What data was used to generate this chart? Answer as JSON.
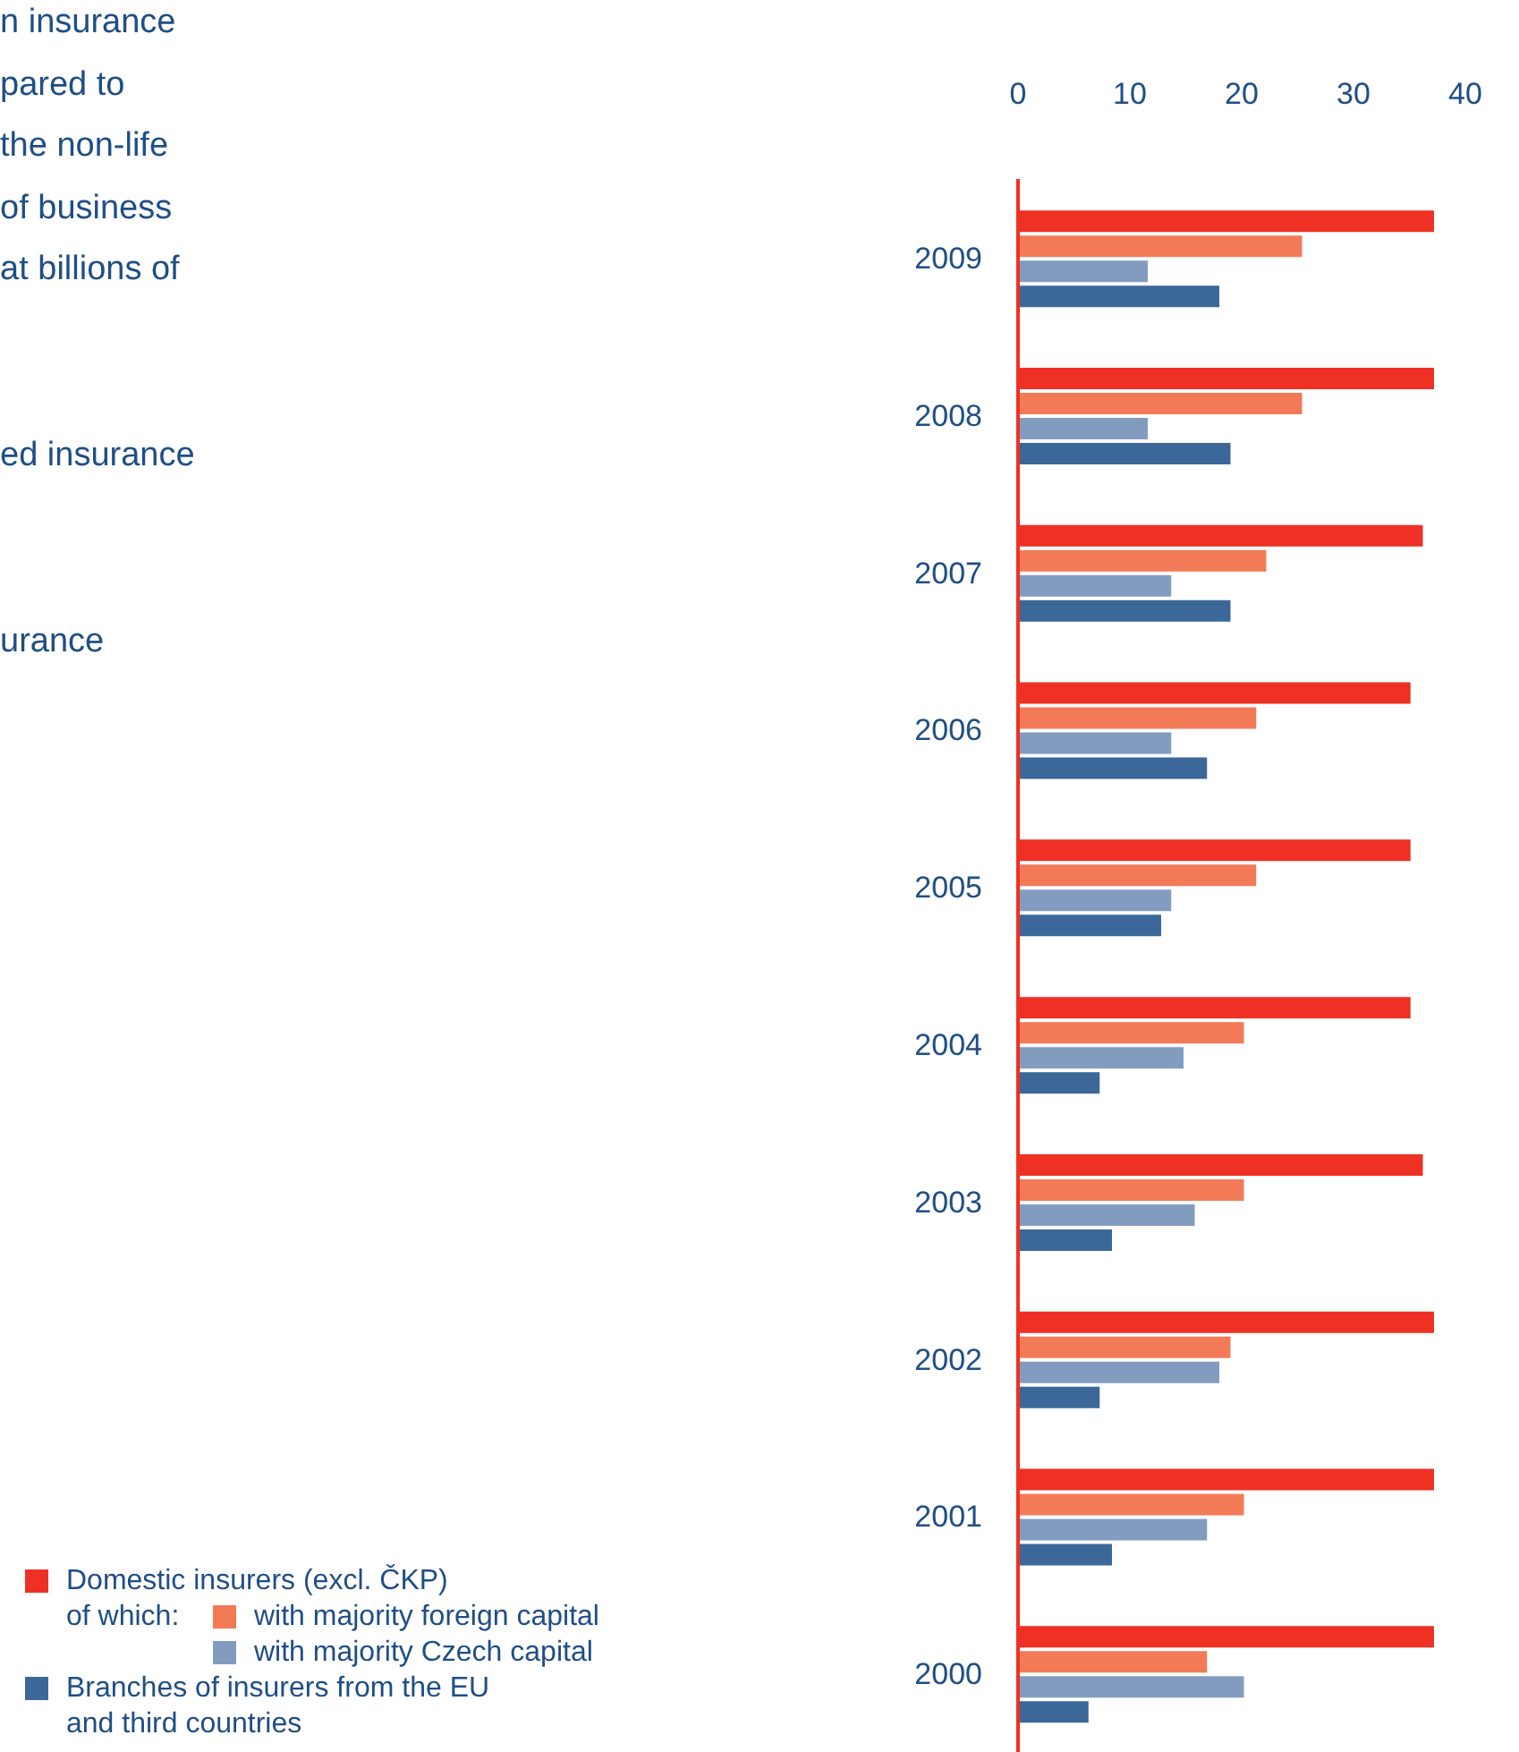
{
  "chart_data": {
    "type": "bar",
    "orientation": "horizontal",
    "categories": [
      "2009",
      "2008",
      "2007",
      "2006",
      "2005",
      "2004",
      "2003",
      "2002",
      "2001",
      "2000"
    ],
    "series": [
      {
        "name": "Domestic insurers (excl. ČKP)",
        "color": "#ee3124",
        "values": [
          37.2,
          37.2,
          36.2,
          35.1,
          35.1,
          35.1,
          36.2,
          37.2,
          37.2,
          37.2
        ]
      },
      {
        "name": "with majority foreign capital",
        "color": "#f37a57",
        "values": [
          25.4,
          25.4,
          22.2,
          21.3,
          21.3,
          20.2,
          20.2,
          19.0,
          20.2,
          16.9
        ]
      },
      {
        "name": "with majority Czech capital",
        "color": "#829cc0",
        "values": [
          11.6,
          11.6,
          13.7,
          13.7,
          13.7,
          14.8,
          15.8,
          18.0,
          16.9,
          20.2
        ]
      },
      {
        "name": "Branches of insurers from the EU and third countries",
        "color": "#3b6898",
        "values": [
          18.0,
          19.0,
          19.0,
          16.9,
          12.8,
          7.3,
          8.4,
          7.3,
          8.4,
          6.3
        ]
      }
    ],
    "xlim": [
      0,
      40
    ],
    "xticks": [
      0,
      10,
      20,
      30,
      40
    ],
    "legend": "bottom left",
    "annotations": [
      "n insurance",
      "pared to",
      "the non-life",
      "of business",
      "at billions of",
      "ed insurance",
      "urance",
      "of which:"
    ]
  }
}
